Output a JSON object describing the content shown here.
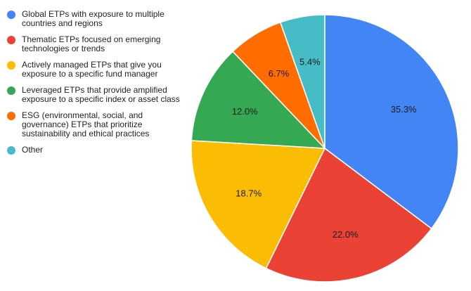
{
  "chart_data": {
    "type": "pie",
    "legend_position": "left",
    "slices": [
      {
        "label": "Global ETPs with exposure to multiple countries and regions",
        "value": 35.3,
        "display": "35.3%",
        "color": "#4285f4"
      },
      {
        "label": "Thematic ETPs focused on emerging technologies or trends",
        "value": 22.0,
        "display": "22.0%",
        "color": "#ea4335"
      },
      {
        "label": "Actively managed ETPs that give you exposure to a specific fund manager",
        "value": 18.7,
        "display": "18.7%",
        "color": "#fbbc04"
      },
      {
        "label": "Leveraged ETPs that provide amplified exposure to a specific index or asset class",
        "value": 12.0,
        "display": "12.0%",
        "color": "#34a853"
      },
      {
        "label": "ESG (environmental, social, and governance) ETPs that prioritize sustainability and ethical practices",
        "value": 6.7,
        "display": "6.7%",
        "color": "#ff6d01"
      },
      {
        "label": "Other",
        "value": 5.4,
        "display": "5.4%",
        "color": "#46bdc6"
      }
    ]
  }
}
